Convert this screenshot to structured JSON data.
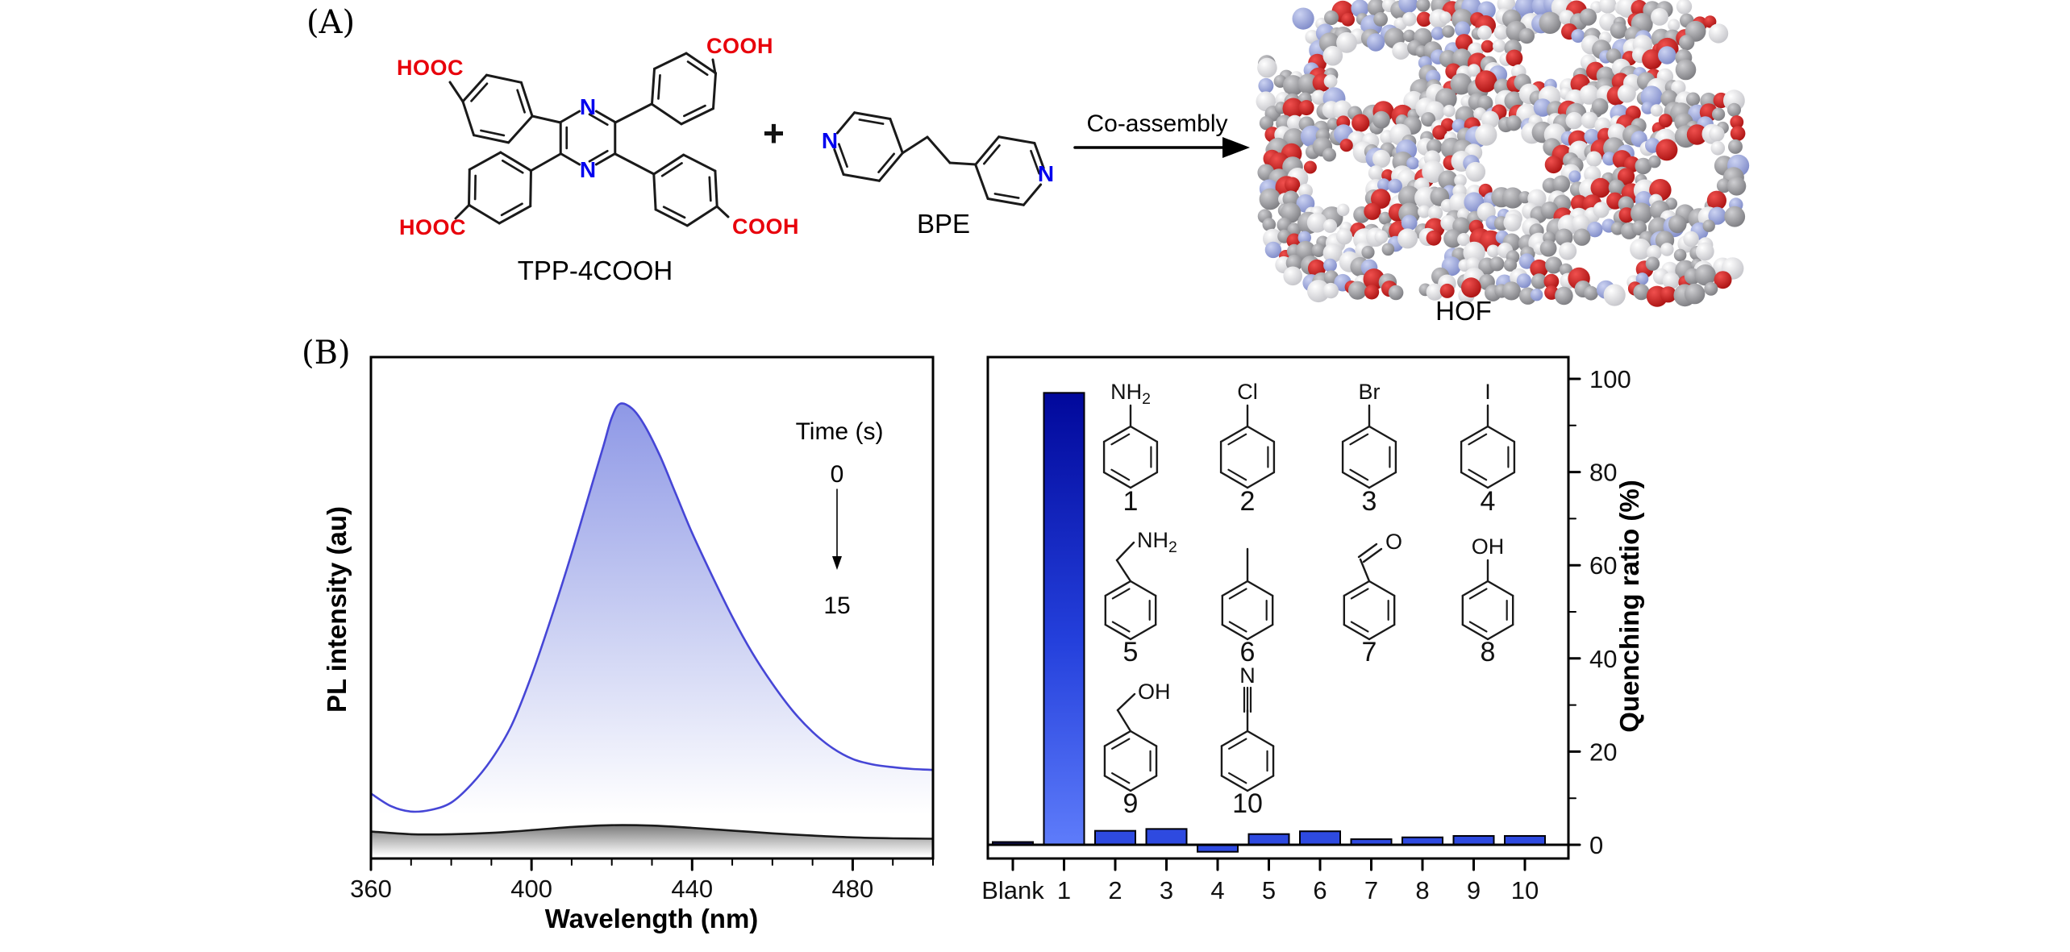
{
  "figure": {
    "panel_a_label": "(A)",
    "panel_b_label": "(B)"
  },
  "panel_a": {
    "tpp_name": "TPP-4COOH",
    "acid_top_left": "HOOC",
    "acid_top_right": "COOH",
    "acid_bottom_left": "HOOC",
    "acid_bottom_right": "COOH",
    "nitrogen_label": "N",
    "plus_sign": "+",
    "bpe_name": "BPE",
    "arrow_label": "Co-assembly",
    "hof_name": "HOF"
  },
  "chart_data": [
    {
      "type": "area",
      "xlabel": "Wavelength (nm)",
      "ylabel": "PL intensity (au)",
      "xlim": [
        360,
        500
      ],
      "xticks": [
        360,
        400,
        440,
        480
      ],
      "minor_tick_step": 10,
      "grid": false,
      "annotation": {
        "title": "Time (s)",
        "from": "0",
        "to": "15"
      },
      "series": [
        {
          "name": "0 s",
          "color": "#4646d6",
          "points": [
            [
              360,
              14
            ],
            [
              365,
              11.2
            ],
            [
              370,
              10
            ],
            [
              375,
              10.4
            ],
            [
              380,
              12
            ],
            [
              385,
              16
            ],
            [
              390,
              21.5
            ],
            [
              395,
              29
            ],
            [
              400,
              40
            ],
            [
              405,
              53
            ],
            [
              410,
              67
            ],
            [
              415,
              82
            ],
            [
              418,
              91
            ],
            [
              420,
              97
            ],
            [
              422,
              100
            ],
            [
              425,
              99
            ],
            [
              428,
              95.5
            ],
            [
              432,
              88.5
            ],
            [
              436,
              80
            ],
            [
              440,
              71.5
            ],
            [
              445,
              62
            ],
            [
              450,
              53
            ],
            [
              455,
              45
            ],
            [
              460,
              38.2
            ],
            [
              465,
              32.3
            ],
            [
              470,
              27.6
            ],
            [
              475,
              24
            ],
            [
              480,
              21.6
            ],
            [
              485,
              20.4
            ],
            [
              490,
              19.8
            ],
            [
              495,
              19.4
            ],
            [
              500,
              19.2
            ]
          ]
        },
        {
          "name": "15 s",
          "color": "#1a1a1a",
          "points": [
            [
              360,
              5.6
            ],
            [
              370,
              5.0
            ],
            [
              380,
              5.0
            ],
            [
              390,
              5.3
            ],
            [
              400,
              5.9
            ],
            [
              410,
              6.6
            ],
            [
              420,
              7.0
            ],
            [
              430,
              6.9
            ],
            [
              440,
              6.4
            ],
            [
              450,
              5.8
            ],
            [
              460,
              5.2
            ],
            [
              470,
              4.7
            ],
            [
              480,
              4.3
            ],
            [
              490,
              4.1
            ],
            [
              500,
              4.0
            ]
          ]
        }
      ]
    },
    {
      "type": "bar",
      "ylabel": "Quenching ratio (%)",
      "ylim": [
        -3,
        105
      ],
      "yticks": [
        0,
        20,
        40,
        60,
        80,
        100
      ],
      "yticks_minor": [
        10,
        30,
        50,
        70,
        90
      ],
      "grid": false,
      "legend_position": "none",
      "categories": [
        "Blank",
        "1",
        "2",
        "3",
        "4",
        "5",
        "6",
        "7",
        "8",
        "9",
        "10"
      ],
      "values": [
        0.6,
        97,
        3.0,
        3.4,
        -1.5,
        2.3,
        2.9,
        1.2,
        1.6,
        1.9,
        1.9
      ],
      "analytes": [
        {
          "num": "1",
          "shown_substituent": "NH2"
        },
        {
          "num": "2",
          "shown_substituent": "Cl"
        },
        {
          "num": "3",
          "shown_substituent": "Br"
        },
        {
          "num": "4",
          "shown_substituent": "I"
        },
        {
          "num": "5",
          "shown_substituent": "CH2NH2"
        },
        {
          "num": "6",
          "shown_substituent": "CH3"
        },
        {
          "num": "7",
          "shown_substituent": "CHO"
        },
        {
          "num": "8",
          "shown_substituent": "OH"
        },
        {
          "num": "9",
          "shown_substituent": "CH2OH"
        },
        {
          "num": "10",
          "shown_substituent": "CN"
        }
      ]
    }
  ],
  "colors": {
    "acid_red": "#e8000b",
    "nitrogen_blue": "#0000ee",
    "spectrum_line": "#4646d6",
    "spectrum_fill_top": "#8e98e6",
    "quench_line": "#1a1a1a",
    "bar_fill": "#2e4ae0",
    "bar_gradient_top": "#01089b",
    "bar_gradient_bottom": "#5e7cfa",
    "blank_bar": "#13136b",
    "hof_gray": "#8f8f93",
    "hof_white": "#e9e9ec",
    "hof_red": "#cf1212",
    "hof_blue": "#9fa9e2"
  }
}
